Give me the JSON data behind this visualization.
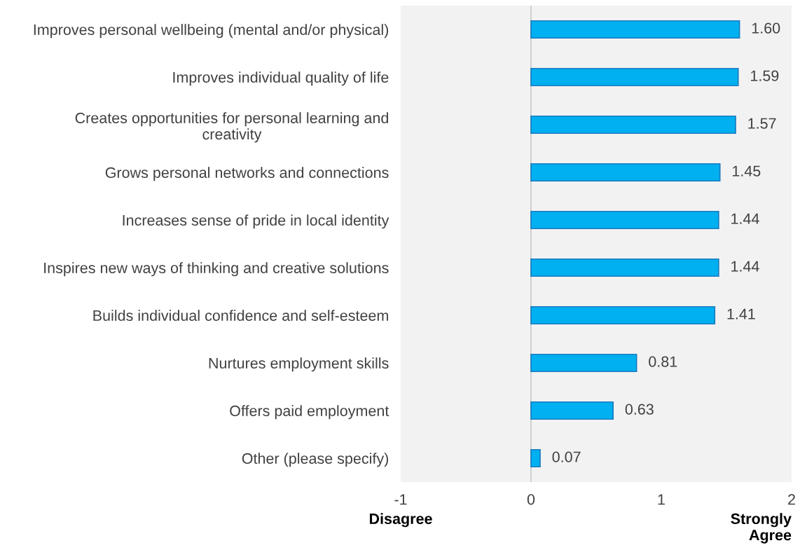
{
  "chart_data": {
    "type": "bar",
    "orientation": "horizontal",
    "categories": [
      "Improves personal wellbeing (mental and/or physical)",
      "Improves individual quality of life",
      "Creates opportunities for personal learning and\ncreativity",
      "Grows personal networks and connections",
      "Increases sense of pride in local identity",
      "Inspires new ways of thinking and creative solutions",
      "Builds individual confidence and self-esteem",
      "Nurtures employment skills",
      "Offers paid employment",
      "Other (please specify)"
    ],
    "values": [
      1.6,
      1.59,
      1.57,
      1.45,
      1.44,
      1.44,
      1.41,
      0.81,
      0.63,
      0.07
    ],
    "color": "#00b0f0",
    "value_labels": [
      "1.60",
      "1.59",
      "1.57",
      "1.45",
      "1.44",
      "1.44",
      "1.41",
      "0.81",
      "0.63",
      "0.07"
    ],
    "xlim": [
      -1,
      2
    ],
    "xticks": [
      -1,
      0,
      1,
      2
    ],
    "ref_lines": [
      {
        "axis": "x",
        "value": 0,
        "color": "#c8c8c8"
      }
    ],
    "annotations": [
      "Disagree",
      "Strongly\nAgree"
    ],
    "grid": false,
    "legend": false
  }
}
